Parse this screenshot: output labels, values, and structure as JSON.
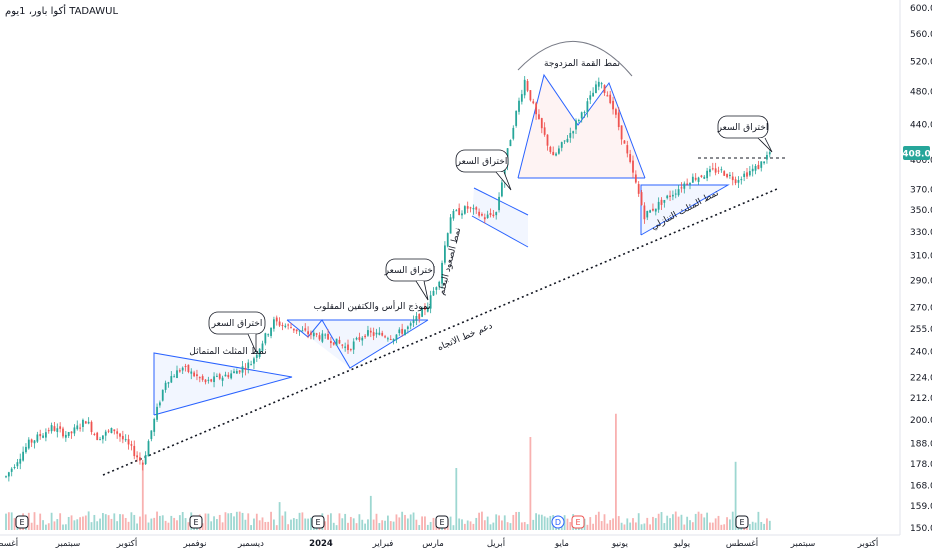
{
  "header": {
    "title": "أكوا باور، 1يوم TADAWUL"
  },
  "price_axis": {
    "ticks": [
      "600.0",
      "560.0",
      "520.0",
      "480.0",
      "440.0",
      "400.0",
      "370.0",
      "350.0",
      "330.0",
      "310.0",
      "290.0",
      "270.0",
      "255.0",
      "240.0",
      "224.0",
      "212.0",
      "200.0",
      "188.0",
      "178.0",
      "168.0",
      "159.0",
      "150.0"
    ],
    "last_price_label": "408.0",
    "badge_color": "#26a69a"
  },
  "time_axis": {
    "labels": [
      "أغسطس",
      "سبتمبر",
      "أكتوبر",
      "نوفمبر",
      "ديسمبر",
      "2024",
      "فبراير",
      "مارس",
      "أبريل",
      "مايو",
      "يونيو",
      "يوليو",
      "أغسطس",
      "سبتمبر",
      "أكتوبر"
    ]
  },
  "annotations": {
    "breakout_1": "اختراق السعر",
    "breakout_2": "اختراق السعر",
    "breakout_3": "اختراق السعر",
    "breakout_4": "اختراق السعر",
    "symmetric_triangle": "نمط المثلث المتماثل",
    "inverse_hs": "نموذج الرأس والكتفين المقلوب",
    "trend_support": "دعم خط الاتجاه",
    "rising_wedge": "نمط الصعود البعلم",
    "double_top": "نمط القمة المزدوجة",
    "descending_triangle": "نمط المثلث التنازلي"
  },
  "events": [
    "E",
    "E",
    "E",
    "E",
    "D",
    "E",
    "E"
  ],
  "colors": {
    "up": "#26a69a",
    "down": "#ef5350",
    "pattern": "#2962ff"
  },
  "chart_data": {
    "type": "candlestick",
    "title": "أكوا باور، 1يوم TADAWUL",
    "y_scale": "log",
    "ylim": [
      150,
      600
    ],
    "x_labels": [
      "أغسطس",
      "سبتمبر",
      "أكتوبر",
      "نوفمبر",
      "ديسمبر",
      "2024",
      "فبراير",
      "مارس",
      "أبريل",
      "مايو",
      "يونيو",
      "يوليو",
      "أغسطس",
      "سبتمبر",
      "أكتوبر"
    ],
    "last_price": 408.0,
    "price_path": [
      [
        0,
        172
      ],
      [
        8,
        188
      ],
      [
        16,
        196
      ],
      [
        22,
        192
      ],
      [
        28,
        200
      ],
      [
        32,
        191
      ],
      [
        38,
        195
      ],
      [
        44,
        185
      ],
      [
        48,
        178
      ],
      [
        52,
        200
      ],
      [
        56,
        222
      ],
      [
        62,
        230
      ],
      [
        70,
        221
      ],
      [
        80,
        227
      ],
      [
        86,
        233
      ],
      [
        94,
        260
      ],
      [
        104,
        253
      ],
      [
        114,
        248
      ],
      [
        120,
        242
      ],
      [
        126,
        252
      ],
      [
        136,
        250
      ],
      [
        142,
        257
      ],
      [
        148,
        272
      ],
      [
        152,
        292
      ],
      [
        156,
        345
      ],
      [
        162,
        352
      ],
      [
        168,
        343
      ],
      [
        172,
        348
      ],
      [
        178,
        440
      ],
      [
        182,
        495
      ],
      [
        186,
        450
      ],
      [
        192,
        402
      ],
      [
        198,
        430
      ],
      [
        204,
        465
      ],
      [
        208,
        492
      ],
      [
        212,
        470
      ],
      [
        218,
        405
      ],
      [
        224,
        345
      ],
      [
        232,
        362
      ],
      [
        240,
        380
      ],
      [
        250,
        390
      ],
      [
        256,
        380
      ],
      [
        264,
        393
      ],
      [
        268,
        408
      ]
    ],
    "volume_spikes": [
      [
        48,
        42
      ],
      [
        96,
        18
      ],
      [
        128,
        22
      ],
      [
        158,
        40
      ],
      [
        184,
        60
      ],
      [
        214,
        75
      ],
      [
        256,
        44
      ]
    ],
    "trendline": {
      "label": "دعم خط الاتجاه",
      "from": [
        0,
        165
      ],
      "to": [
        282,
        372
      ]
    },
    "patterns": [
      {
        "name": "نمط المثلث المتماثل"
      },
      {
        "name": "نموذج الرأس والكتفين المقلوب"
      },
      {
        "name": "نمط الصعود البعلم"
      },
      {
        "name": "نمط القمة المزدوجة",
        "neckline": 382
      },
      {
        "name": "نمط المثلث التنازلي"
      }
    ],
    "resistance": 400
  }
}
